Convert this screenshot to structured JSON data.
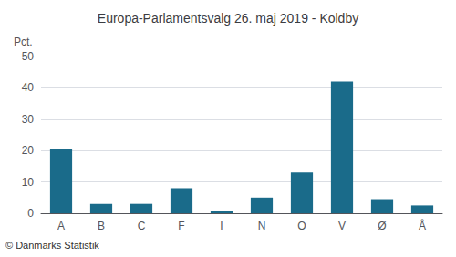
{
  "chart_data": {
    "type": "bar",
    "title": "Europa-Parlamentsvalg 26. maj 2019 - Koldby",
    "categories": [
      "A",
      "B",
      "C",
      "F",
      "I",
      "N",
      "O",
      "V",
      "Ø",
      "Å"
    ],
    "values": [
      20.5,
      3.0,
      3.0,
      8.0,
      0.7,
      5.0,
      13.0,
      42.0,
      4.5,
      2.5
    ],
    "color": "#1a6b8a",
    "ylabel": "Pct.",
    "footer": "© Danmarks Statistik",
    "ylim": [
      0,
      50
    ],
    "yticks": [
      0,
      10,
      20,
      30,
      40,
      50
    ],
    "grid": true
  }
}
